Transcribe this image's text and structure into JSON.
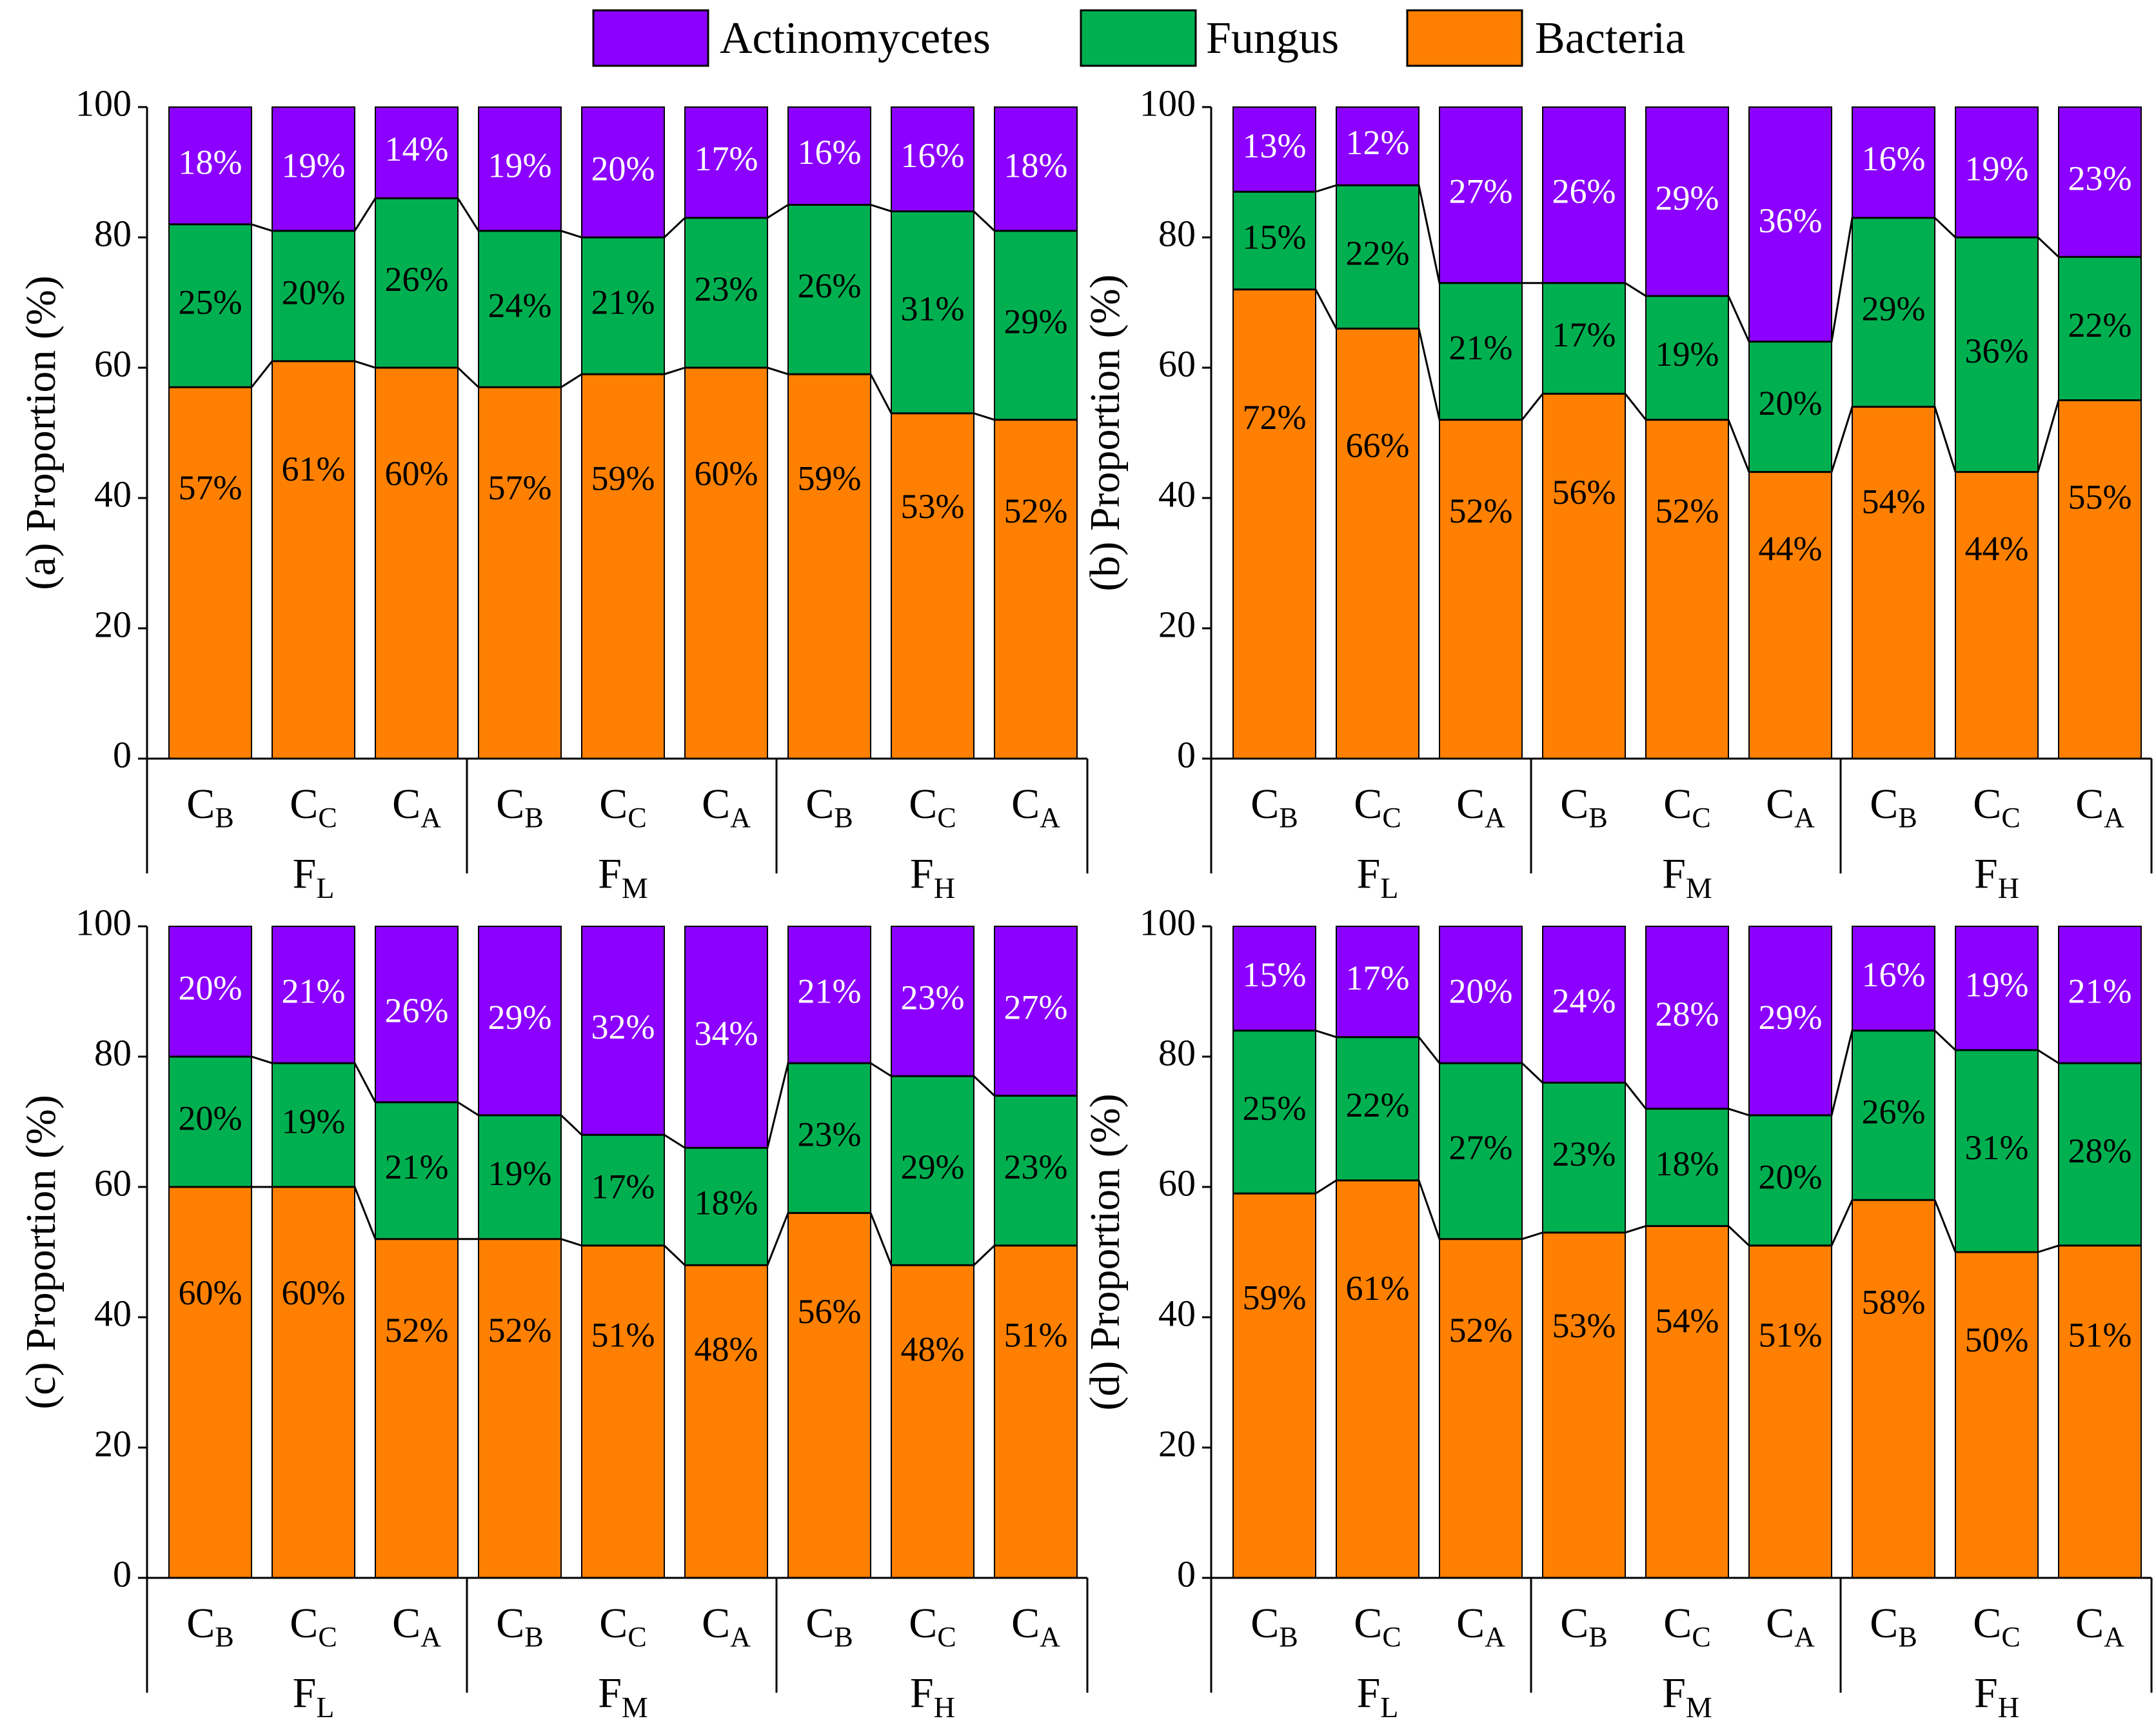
{
  "colors": {
    "Actinomycetes": "#8b00ff",
    "Fungus": "#00b050",
    "Bacteria": "#ff8000",
    "text_on_actino": "#ffffff",
    "text_default": "#000000"
  },
  "legend": {
    "items": [
      {
        "name": "Actinomycetes"
      },
      {
        "name": "Fungus"
      },
      {
        "name": "Bacteria"
      }
    ]
  },
  "chart_data": [
    {
      "type": "bar",
      "stacked": true,
      "panel": "(a)",
      "ylabel": "Proportion (%)",
      "ylim": [
        0,
        100
      ],
      "yticks": [
        "0",
        "20",
        "40",
        "60",
        "80",
        "100"
      ],
      "categories": [
        {
          "base": "C",
          "sub": "B",
          "group": "F",
          "gsub": "L"
        },
        {
          "base": "C",
          "sub": "C",
          "group": "F",
          "gsub": "L"
        },
        {
          "base": "C",
          "sub": "A",
          "group": "F",
          "gsub": "L"
        },
        {
          "base": "C",
          "sub": "B",
          "group": "F",
          "gsub": "M"
        },
        {
          "base": "C",
          "sub": "C",
          "group": "F",
          "gsub": "M"
        },
        {
          "base": "C",
          "sub": "A",
          "group": "F",
          "gsub": "M"
        },
        {
          "base": "C",
          "sub": "B",
          "group": "F",
          "gsub": "H"
        },
        {
          "base": "C",
          "sub": "C",
          "group": "F",
          "gsub": "H"
        },
        {
          "base": "C",
          "sub": "A",
          "group": "F",
          "gsub": "H"
        }
      ],
      "series": [
        {
          "name": "Bacteria",
          "values": [
            57,
            61,
            60,
            57,
            59,
            60,
            59,
            53,
            52
          ],
          "labels": [
            "57%",
            "61%",
            "60%",
            "57%",
            "59%",
            "60%",
            "59%",
            "53%",
            "52%"
          ]
        },
        {
          "name": "Fungus",
          "values": [
            25,
            20,
            26,
            24,
            21,
            23,
            26,
            31,
            29
          ],
          "labels": [
            "25%",
            "20%",
            "26%",
            "24%",
            "21%",
            "23%",
            "26%",
            "31%",
            "29%"
          ]
        },
        {
          "name": "Actinomycetes",
          "values": [
            18,
            19,
            14,
            19,
            20,
            17,
            16,
            16,
            18
          ],
          "labels": [
            "18%",
            "19%",
            "14%",
            "19%",
            "20%",
            "17%",
            "16%",
            "16%",
            "18%"
          ]
        }
      ]
    },
    {
      "type": "bar",
      "stacked": true,
      "panel": "(b)",
      "ylabel": "Proportion (%)",
      "ylim": [
        0,
        100
      ],
      "yticks": [
        "0",
        "20",
        "40",
        "60",
        "80",
        "100"
      ],
      "categories": [
        {
          "base": "C",
          "sub": "B",
          "group": "F",
          "gsub": "L"
        },
        {
          "base": "C",
          "sub": "C",
          "group": "F",
          "gsub": "L"
        },
        {
          "base": "C",
          "sub": "A",
          "group": "F",
          "gsub": "L"
        },
        {
          "base": "C",
          "sub": "B",
          "group": "F",
          "gsub": "M"
        },
        {
          "base": "C",
          "sub": "C",
          "group": "F",
          "gsub": "M"
        },
        {
          "base": "C",
          "sub": "A",
          "group": "F",
          "gsub": "M"
        },
        {
          "base": "C",
          "sub": "B",
          "group": "F",
          "gsub": "H"
        },
        {
          "base": "C",
          "sub": "C",
          "group": "F",
          "gsub": "H"
        },
        {
          "base": "C",
          "sub": "A",
          "group": "F",
          "gsub": "H"
        }
      ],
      "series": [
        {
          "name": "Bacteria",
          "values": [
            72,
            66,
            52,
            56,
            52,
            44,
            54,
            44,
            55
          ],
          "labels": [
            "72%",
            "66%",
            "52%",
            "56%",
            "52%",
            "44%",
            "54%",
            "44%",
            "55%"
          ]
        },
        {
          "name": "Fungus",
          "values": [
            15,
            22,
            21,
            17,
            19,
            20,
            29,
            36,
            22
          ],
          "labels": [
            "15%",
            "22%",
            "21%",
            "17%",
            "19%",
            "20%",
            "29%",
            "36%",
            "22%"
          ]
        },
        {
          "name": "Actinomycetes",
          "values": [
            13,
            12,
            27,
            26,
            29,
            36,
            16,
            19,
            23
          ],
          "labels": [
            "13%",
            "12%",
            "27%",
            "26%",
            "29%",
            "36%",
            "16%",
            "19%",
            "23%"
          ]
        }
      ]
    },
    {
      "type": "bar",
      "stacked": true,
      "panel": "(c)",
      "ylabel": "Proportion (%)",
      "ylim": [
        0,
        100
      ],
      "yticks": [
        "0",
        "20",
        "40",
        "60",
        "80",
        "100"
      ],
      "categories": [
        {
          "base": "C",
          "sub": "B",
          "group": "F",
          "gsub": "L"
        },
        {
          "base": "C",
          "sub": "C",
          "group": "F",
          "gsub": "L"
        },
        {
          "base": "C",
          "sub": "A",
          "group": "F",
          "gsub": "L"
        },
        {
          "base": "C",
          "sub": "B",
          "group": "F",
          "gsub": "M"
        },
        {
          "base": "C",
          "sub": "C",
          "group": "F",
          "gsub": "M"
        },
        {
          "base": "C",
          "sub": "A",
          "group": "F",
          "gsub": "M"
        },
        {
          "base": "C",
          "sub": "B",
          "group": "F",
          "gsub": "H"
        },
        {
          "base": "C",
          "sub": "C",
          "group": "F",
          "gsub": "H"
        },
        {
          "base": "C",
          "sub": "A",
          "group": "F",
          "gsub": "H"
        }
      ],
      "series": [
        {
          "name": "Bacteria",
          "values": [
            60,
            60,
            52,
            52,
            51,
            48,
            56,
            48,
            51
          ],
          "labels": [
            "60%",
            "60%",
            "52%",
            "52%",
            "51%",
            "48%",
            "56%",
            "48%",
            "51%"
          ]
        },
        {
          "name": "Fungus",
          "values": [
            20,
            19,
            21,
            19,
            17,
            18,
            23,
            29,
            23
          ],
          "labels": [
            "20%",
            "19%",
            "21%",
            "19%",
            "17%",
            "18%",
            "23%",
            "29%",
            "23%"
          ]
        },
        {
          "name": "Actinomycetes",
          "values": [
            20,
            21,
            26,
            29,
            32,
            34,
            21,
            23,
            27
          ],
          "labels": [
            "20%",
            "21%",
            "26%",
            "29%",
            "32%",
            "34%",
            "21%",
            "23%",
            "27%"
          ]
        }
      ]
    },
    {
      "type": "bar",
      "stacked": true,
      "panel": "(d)",
      "ylabel": "Proportion (%)",
      "ylim": [
        0,
        100
      ],
      "yticks": [
        "0",
        "20",
        "40",
        "60",
        "80",
        "100"
      ],
      "categories": [
        {
          "base": "C",
          "sub": "B",
          "group": "F",
          "gsub": "L"
        },
        {
          "base": "C",
          "sub": "C",
          "group": "F",
          "gsub": "L"
        },
        {
          "base": "C",
          "sub": "A",
          "group": "F",
          "gsub": "L"
        },
        {
          "base": "C",
          "sub": "B",
          "group": "F",
          "gsub": "M"
        },
        {
          "base": "C",
          "sub": "C",
          "group": "F",
          "gsub": "M"
        },
        {
          "base": "C",
          "sub": "A",
          "group": "F",
          "gsub": "M"
        },
        {
          "base": "C",
          "sub": "B",
          "group": "F",
          "gsub": "H"
        },
        {
          "base": "C",
          "sub": "C",
          "group": "F",
          "gsub": "H"
        },
        {
          "base": "C",
          "sub": "A",
          "group": "F",
          "gsub": "H"
        }
      ],
      "series": [
        {
          "name": "Bacteria",
          "values": [
            59,
            61,
            52,
            53,
            54,
            51,
            58,
            50,
            51
          ],
          "labels": [
            "59%",
            "61%",
            "52%",
            "53%",
            "54%",
            "51%",
            "58%",
            "50%",
            "51%"
          ]
        },
        {
          "name": "Fungus",
          "values": [
            25,
            22,
            27,
            23,
            18,
            20,
            26,
            31,
            28
          ],
          "labels": [
            "25%",
            "22%",
            "27%",
            "23%",
            "18%",
            "20%",
            "26%",
            "31%",
            "28%"
          ]
        },
        {
          "name": "Actinomycetes",
          "values": [
            15,
            17,
            20,
            24,
            28,
            29,
            16,
            19,
            21
          ],
          "labels": [
            "15%",
            "17%",
            "20%",
            "24%",
            "28%",
            "29%",
            "16%",
            "19%",
            "21%"
          ]
        }
      ]
    }
  ]
}
